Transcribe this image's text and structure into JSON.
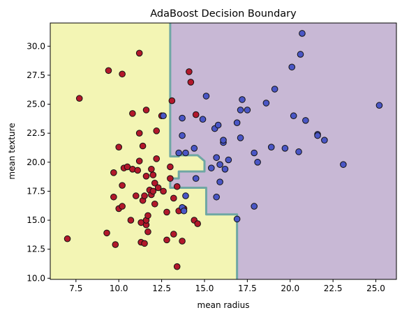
{
  "chart_data": {
    "type": "scatter",
    "title": "AdaBoost Decision Boundary",
    "xlabel": "mean radius",
    "ylabel": "mean texture",
    "xlim": [
      6.0,
      26.2
    ],
    "ylim": [
      9.9,
      32.0
    ],
    "x_ticks": [
      "7.5",
      "10.0",
      "12.5",
      "15.0",
      "17.5",
      "20.0",
      "22.5",
      "25.0"
    ],
    "y_ticks": [
      "10.0",
      "12.5",
      "15.0",
      "17.5",
      "20.0",
      "22.5",
      "25.0",
      "27.5",
      "30.0"
    ],
    "grid": false,
    "legend": "none",
    "colors": {
      "region_class_0": "#f3f5b4",
      "region_class_1": "#c8b8d5",
      "boundary_line": "#6fa7a4",
      "class_0_point": "#b2182b",
      "class_1_point": "#4a56c5",
      "point_edge": "#111111"
    },
    "decision_boundary": [
      [
        13.0,
        32.0
      ],
      [
        13.0,
        20.5
      ],
      [
        13.5,
        20.5
      ],
      [
        13.5,
        20.6
      ],
      [
        14.6,
        20.6
      ],
      [
        15.0,
        20.1
      ],
      [
        15.0,
        19.2
      ],
      [
        13.5,
        19.2
      ],
      [
        13.5,
        18.6
      ],
      [
        13.0,
        18.6
      ],
      [
        13.0,
        17.8
      ],
      [
        15.1,
        17.8
      ],
      [
        15.1,
        15.5
      ],
      [
        16.9,
        15.5
      ],
      [
        16.9,
        9.9
      ]
    ],
    "series": [
      {
        "class": 0,
        "points": [
          [
            7.0,
            13.4
          ],
          [
            7.7,
            25.5
          ],
          [
            9.3,
            13.9
          ],
          [
            9.4,
            27.9
          ],
          [
            9.7,
            19.1
          ],
          [
            9.7,
            17.0
          ],
          [
            9.8,
            12.9
          ],
          [
            10.0,
            16.0
          ],
          [
            10.0,
            21.3
          ],
          [
            10.2,
            18.0
          ],
          [
            10.2,
            16.2
          ],
          [
            10.2,
            27.6
          ],
          [
            10.3,
            19.5
          ],
          [
            10.5,
            19.6
          ],
          [
            10.7,
            15.0
          ],
          [
            10.8,
            19.4
          ],
          [
            10.8,
            24.2
          ],
          [
            11.0,
            17.1
          ],
          [
            11.1,
            19.3
          ],
          [
            11.2,
            22.5
          ],
          [
            11.2,
            20.1
          ],
          [
            11.2,
            29.4
          ],
          [
            11.3,
            14.8
          ],
          [
            11.3,
            13.1
          ],
          [
            11.4,
            21.4
          ],
          [
            11.4,
            16.7
          ],
          [
            11.5,
            13.0
          ],
          [
            11.5,
            17.1
          ],
          [
            11.6,
            14.6
          ],
          [
            11.6,
            18.8
          ],
          [
            11.6,
            15.0
          ],
          [
            11.6,
            24.5
          ],
          [
            11.7,
            14.0
          ],
          [
            11.7,
            15.4
          ],
          [
            11.8,
            17.6
          ],
          [
            11.9,
            19.4
          ],
          [
            11.9,
            17.2
          ],
          [
            12.0,
            18.9
          ],
          [
            12.0,
            17.5
          ],
          [
            12.1,
            18.2
          ],
          [
            12.1,
            16.4
          ],
          [
            12.2,
            20.3
          ],
          [
            12.2,
            22.7
          ],
          [
            12.3,
            17.8
          ],
          [
            12.5,
            24.0
          ],
          [
            12.6,
            17.5
          ],
          [
            12.8,
            13.3
          ],
          [
            12.8,
            15.7
          ],
          [
            13.0,
            19.6
          ],
          [
            13.0,
            18.6
          ],
          [
            13.1,
            25.3
          ],
          [
            13.2,
            13.8
          ],
          [
            13.2,
            16.9
          ],
          [
            13.4,
            17.9
          ],
          [
            13.4,
            11.0
          ],
          [
            13.5,
            15.8
          ],
          [
            13.7,
            13.2
          ],
          [
            13.8,
            16.0
          ],
          [
            14.1,
            27.8
          ],
          [
            14.2,
            26.9
          ],
          [
            14.4,
            15.0
          ],
          [
            14.5,
            24.1
          ],
          [
            14.6,
            14.7
          ]
        ]
      },
      {
        "class": 1,
        "points": [
          [
            12.6,
            24.0
          ],
          [
            13.5,
            20.8
          ],
          [
            13.7,
            23.8
          ],
          [
            13.7,
            22.3
          ],
          [
            13.7,
            16.1
          ],
          [
            13.8,
            15.8
          ],
          [
            13.9,
            17.1
          ],
          [
            13.9,
            20.8
          ],
          [
            14.4,
            21.2
          ],
          [
            14.5,
            18.6
          ],
          [
            14.9,
            23.7
          ],
          [
            15.1,
            25.7
          ],
          [
            15.4,
            19.5
          ],
          [
            15.6,
            22.9
          ],
          [
            15.7,
            20.4
          ],
          [
            15.7,
            17.0
          ],
          [
            15.8,
            23.2
          ],
          [
            15.9,
            19.8
          ],
          [
            15.9,
            18.3
          ],
          [
            16.1,
            21.7
          ],
          [
            16.1,
            21.9
          ],
          [
            16.2,
            19.4
          ],
          [
            16.4,
            20.2
          ],
          [
            16.9,
            15.1
          ],
          [
            16.9,
            23.4
          ],
          [
            17.1,
            22.1
          ],
          [
            17.1,
            24.5
          ],
          [
            17.2,
            25.4
          ],
          [
            17.5,
            24.5
          ],
          [
            17.9,
            20.8
          ],
          [
            17.9,
            16.2
          ],
          [
            18.1,
            20.0
          ],
          [
            18.6,
            25.1
          ],
          [
            18.9,
            21.3
          ],
          [
            19.1,
            26.3
          ],
          [
            19.7,
            21.2
          ],
          [
            20.1,
            28.2
          ],
          [
            20.2,
            24.0
          ],
          [
            20.5,
            20.9
          ],
          [
            20.6,
            29.3
          ],
          [
            20.7,
            31.1
          ],
          [
            20.9,
            23.6
          ],
          [
            21.6,
            22.4
          ],
          [
            21.6,
            22.3
          ],
          [
            22.0,
            21.9
          ],
          [
            23.1,
            19.8
          ],
          [
            25.2,
            24.9
          ]
        ]
      }
    ]
  }
}
